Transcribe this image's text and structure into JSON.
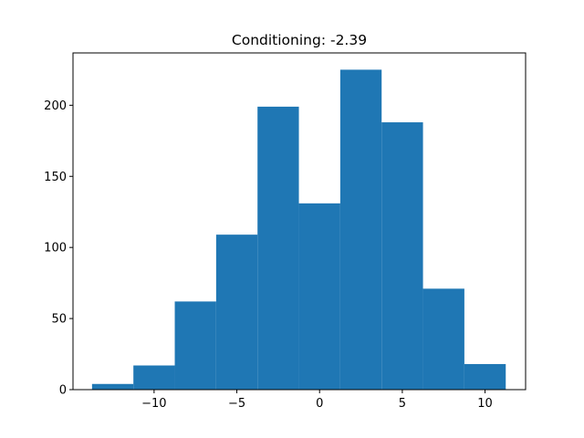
{
  "chart_data": {
    "type": "bar",
    "title": "Conditioning: -2.39",
    "xlabel": "",
    "ylabel": "",
    "xlim": [
      -14.9,
      12.45
    ],
    "ylim": [
      0,
      236.8
    ],
    "grid": false,
    "legend": "none",
    "bar_color": "#1f77b4",
    "bins": [
      {
        "left": -13.75,
        "right": -11.25,
        "count": 4
      },
      {
        "left": -11.25,
        "right": -8.75,
        "count": 17
      },
      {
        "left": -8.75,
        "right": -6.25,
        "count": 62
      },
      {
        "left": -6.25,
        "right": -3.75,
        "count": 109
      },
      {
        "left": -3.75,
        "right": -1.25,
        "count": 199
      },
      {
        "left": -1.25,
        "right": 1.25,
        "count": 131
      },
      {
        "left": 1.25,
        "right": 3.75,
        "count": 225
      },
      {
        "left": 3.75,
        "right": 6.25,
        "count": 188
      },
      {
        "left": 6.25,
        "right": 8.75,
        "count": 71
      },
      {
        "left": 8.75,
        "right": 11.25,
        "count": 18
      }
    ],
    "xticks": [
      {
        "value": -10,
        "label": "−10"
      },
      {
        "value": -5,
        "label": "−5"
      },
      {
        "value": 0,
        "label": "0"
      },
      {
        "value": 5,
        "label": "5"
      },
      {
        "value": 10,
        "label": "10"
      }
    ],
    "yticks": [
      {
        "value": 0,
        "label": "0"
      },
      {
        "value": 50,
        "label": "50"
      },
      {
        "value": 100,
        "label": "100"
      },
      {
        "value": 150,
        "label": "150"
      },
      {
        "value": 200,
        "label": "200"
      }
    ]
  }
}
